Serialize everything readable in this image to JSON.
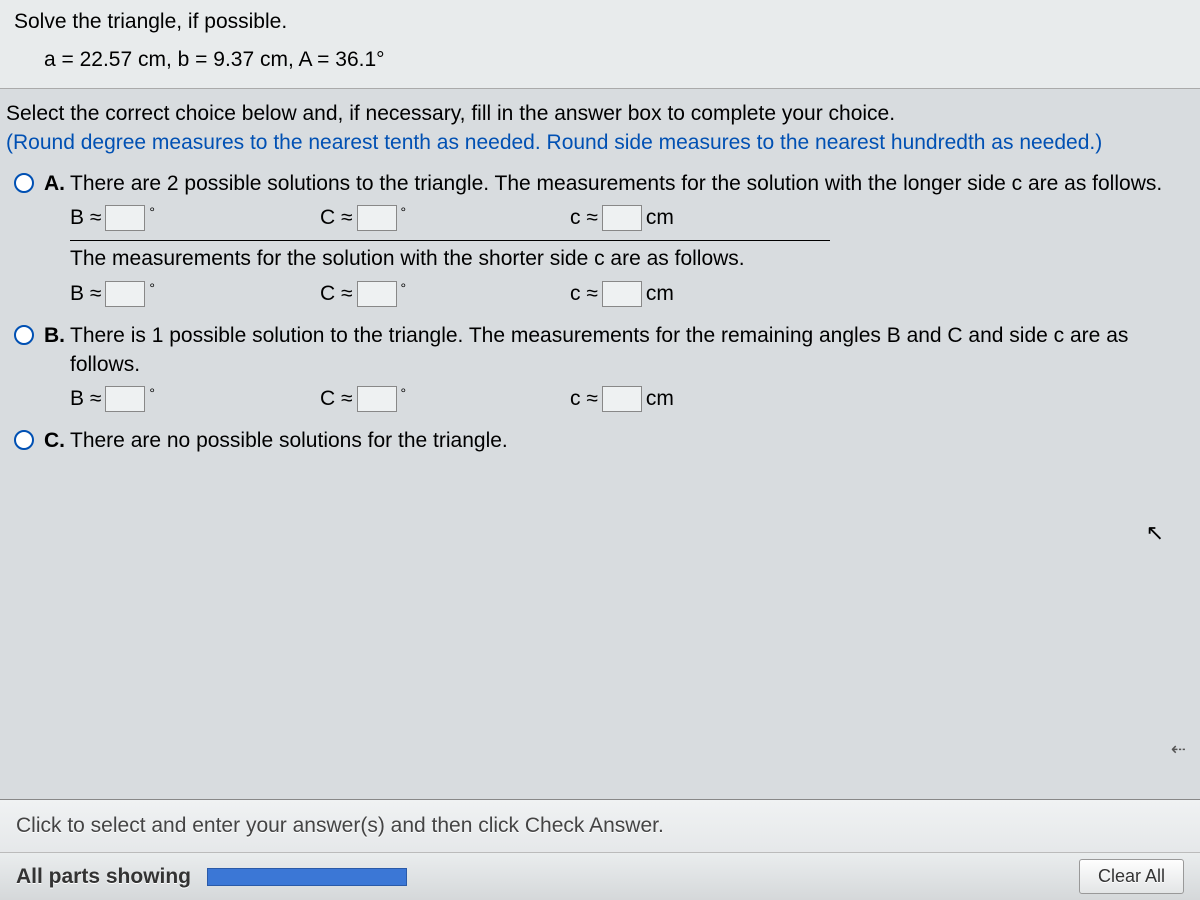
{
  "question": {
    "title": "Solve the triangle, if possible.",
    "given": "a = 22.57 cm, b = 9.37 cm, A = 36.1°"
  },
  "instruction": {
    "line1": "Select the correct choice below and, if necessary, fill in the answer box to complete your choice.",
    "line2": "(Round degree measures to the nearest tenth as needed.  Round side measures to the nearest hundredth as needed.)"
  },
  "choices": {
    "A": {
      "letter": "A.",
      "text1": "There are 2 possible solutions to the triangle. The measurements for the solution with the longer side c are as follows.",
      "text2": "The measurements for the solution with the shorter side c are as follows."
    },
    "B": {
      "letter": "B.",
      "text": "There is 1 possible solution to the triangle. The measurements for the remaining angles B and C and side c are as follows."
    },
    "C": {
      "letter": "C.",
      "text": "There are no possible solutions for the triangle."
    }
  },
  "labels": {
    "B_approx": "B ≈",
    "C_approx": "C ≈",
    "c_approx": "c ≈",
    "deg": "°",
    "cm": "cm"
  },
  "bottom": {
    "hint": "Click to select and enter your answer(s) and then click Check Answer.",
    "parts": "All parts showing",
    "clear": "Clear All"
  },
  "colors": {
    "instruction_blue": "#0050b3",
    "page_bg": "#d8dcdf",
    "question_bg": "#e8ebec",
    "progress_fill": "#3b77d6"
  }
}
